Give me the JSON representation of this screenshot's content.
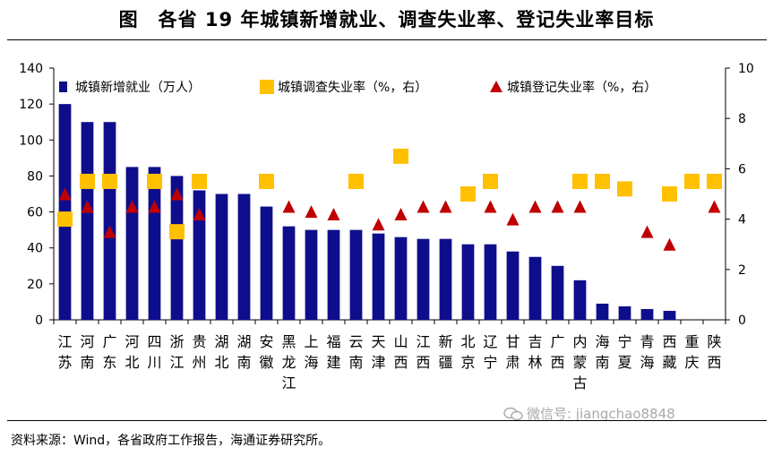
{
  "title": "图　各省 19 年城镇新增就业、调查失业率、登记失业率目标",
  "source": "资料来源：Wind，各省政府工作报告，海通证券研究所。",
  "watermark": "微信号: jiangchao8848",
  "colors": {
    "bar": "#0e0e8c",
    "square": "#ffc000",
    "triangle": "#c00000",
    "axis": "#000000"
  },
  "chart_data": {
    "type": "bar",
    "categories": [
      "江苏",
      "河南",
      "广东",
      "河北",
      "四川",
      "浙江",
      "贵州",
      "湖北",
      "湖南",
      "安徽",
      "黑龙江",
      "上海",
      "福建",
      "云南",
      "天津",
      "山西",
      "江西",
      "新疆",
      "北京",
      "辽宁",
      "甘肃",
      "吉林",
      "广西",
      "内蒙古",
      "海南",
      "宁夏",
      "青海",
      "西藏",
      "重庆",
      "陕西"
    ],
    "legend_position": "top",
    "grid": false,
    "y_left": {
      "range": [
        0,
        140
      ],
      "ticks": [
        0,
        20,
        40,
        60,
        80,
        100,
        120,
        140
      ]
    },
    "y_right": {
      "range": [
        0,
        10
      ],
      "ticks": [
        0,
        2,
        4,
        6,
        8,
        10
      ]
    },
    "series": [
      {
        "name": "城镇新增就业（万人）",
        "type": "bar",
        "axis": "left",
        "values": [
          120,
          110,
          110,
          85,
          85,
          80,
          72,
          70,
          70,
          63,
          52,
          50,
          50,
          50,
          48,
          46,
          45,
          45,
          42,
          42,
          38,
          35,
          30,
          22,
          9,
          7.5,
          6,
          5,
          null,
          null
        ]
      },
      {
        "name": "城镇调查失业率（%，右）",
        "type": "scatter",
        "marker": "square",
        "axis": "right",
        "values": [
          4,
          5.5,
          5.5,
          null,
          5.5,
          3.5,
          5.5,
          null,
          null,
          5.5,
          null,
          null,
          null,
          5.5,
          null,
          6.5,
          null,
          null,
          5,
          5.5,
          null,
          null,
          null,
          5.5,
          5.5,
          5.2,
          null,
          5,
          5.5,
          5.5
        ]
      },
      {
        "name": "城镇登记失业率（%，右）",
        "type": "scatter",
        "marker": "triangle",
        "axis": "right",
        "values": [
          5,
          4.5,
          3.5,
          4.5,
          4.5,
          5,
          4.2,
          null,
          null,
          null,
          4.5,
          4.3,
          4.2,
          null,
          3.8,
          4.2,
          4.5,
          4.5,
          null,
          4.5,
          4,
          4.5,
          4.5,
          4.5,
          null,
          null,
          3.5,
          3,
          null,
          4.5
        ]
      }
    ]
  }
}
